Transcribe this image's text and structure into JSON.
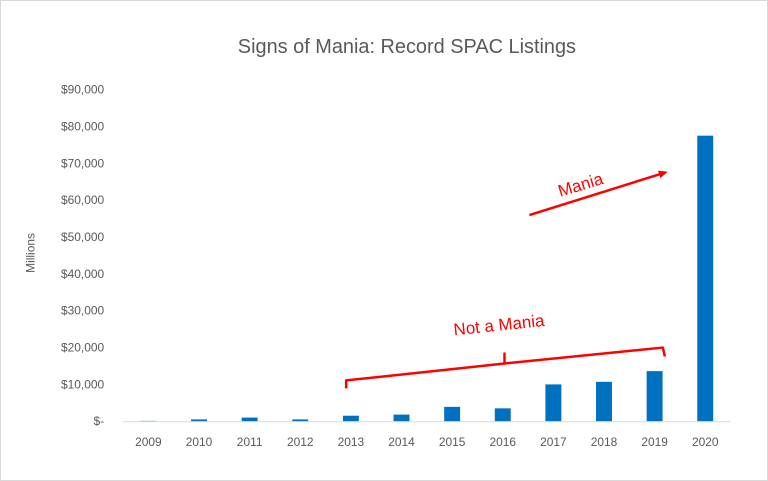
{
  "chart_data": {
    "type": "bar",
    "title": "Signs of Mania: Record SPAC Listings",
    "xlabel": "",
    "ylabel": "Millions",
    "categories": [
      "2009",
      "2010",
      "2011",
      "2012",
      "2013",
      "2014",
      "2015",
      "2016",
      "2017",
      "2018",
      "2019",
      "2020"
    ],
    "values": [
      100,
      500,
      1000,
      500,
      1500,
      1800,
      3900,
      3500,
      10000,
      10700,
      13600,
      77500
    ],
    "ylim": [
      0,
      90000
    ],
    "yticks": [
      0,
      10000,
      20000,
      30000,
      40000,
      50000,
      60000,
      70000,
      80000,
      90000
    ],
    "ytick_labels": [
      "$-",
      "$10,000",
      "$20,000",
      "$30,000",
      "$40,000",
      "$50,000",
      "$60,000",
      "$70,000",
      "$80,000",
      "$90,000"
    ],
    "bar_color": "#0070c0",
    "grid": false,
    "legend": "none",
    "annotations": [
      {
        "text": "Mania",
        "color": "#ff0000"
      },
      {
        "text": "Not a Mania",
        "color": "#ff0000"
      }
    ]
  }
}
